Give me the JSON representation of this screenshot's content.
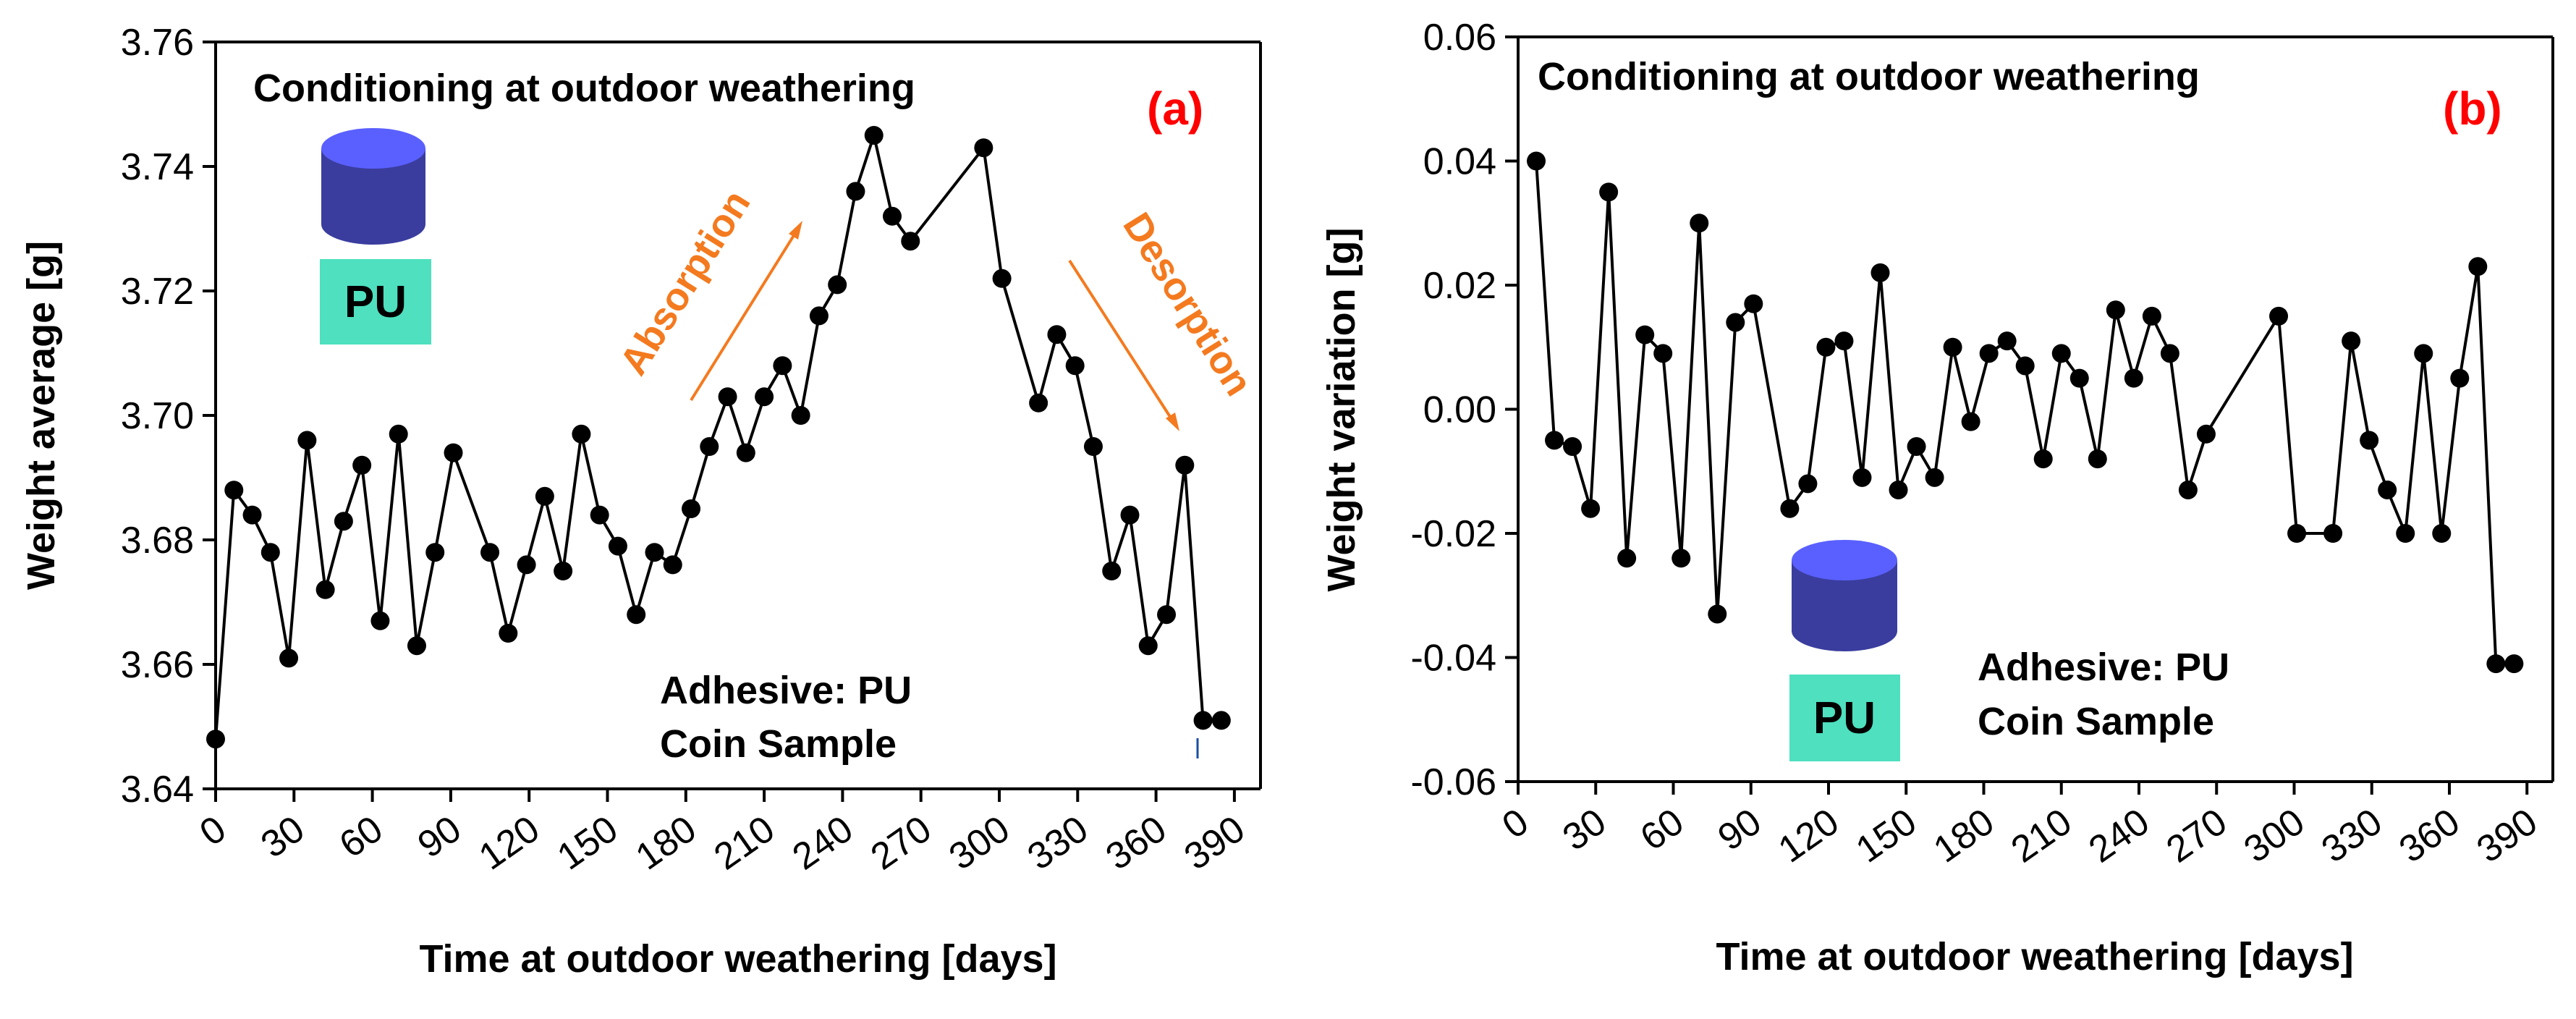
{
  "chart_data": [
    {
      "type": "line",
      "panel_label": "(a)",
      "title": "Conditioning at outdoor weathering",
      "xlabel": "Time at outdoor weathering [days]",
      "ylabel": "Weight average [g]",
      "xlim": [
        0,
        400
      ],
      "ylim": [
        3.64,
        3.76
      ],
      "xticks": [
        "0",
        "30",
        "60",
        "90",
        "120",
        "150",
        "180",
        "210",
        "240",
        "270",
        "300",
        "330",
        "360",
        "390"
      ],
      "yticks": [
        "3.64",
        "3.66",
        "3.68",
        "3.70",
        "3.72",
        "3.74",
        "3.76"
      ],
      "series": [
        {
          "name": "Weight average",
          "x": [
            0,
            7,
            14,
            21,
            28,
            35,
            42,
            49,
            56,
            63,
            70,
            77,
            84,
            91,
            105,
            112,
            119,
            126,
            133,
            140,
            147,
            154,
            161,
            168,
            175,
            182,
            189,
            196,
            203,
            210,
            217,
            224,
            231,
            238,
            245,
            252,
            259,
            266,
            294,
            301,
            315,
            322,
            329,
            336,
            343,
            350,
            357,
            364,
            371,
            378,
            385
          ],
          "values": [
            3.648,
            3.688,
            3.684,
            3.678,
            3.661,
            3.696,
            3.672,
            3.683,
            3.692,
            3.667,
            3.697,
            3.663,
            3.678,
            3.694,
            3.678,
            3.665,
            3.676,
            3.687,
            3.675,
            3.697,
            3.684,
            3.679,
            3.668,
            3.678,
            3.676,
            3.685,
            3.695,
            3.703,
            3.694,
            3.703,
            3.708,
            3.7,
            3.716,
            3.721,
            3.736,
            3.745,
            3.732,
            3.728,
            3.743,
            3.722,
            3.702,
            3.713,
            3.708,
            3.695,
            3.675,
            3.684,
            3.663,
            3.668,
            3.692,
            3.651,
            3.651
          ]
        }
      ],
      "annotations": {
        "absorption": "Absorption",
        "desorption": "Desorption",
        "adhesive_line": "Adhesive: PU",
        "sample_line": "Coin Sample",
        "pu_label": "PU"
      }
    },
    {
      "type": "line",
      "panel_label": "(b)",
      "title": "Conditioning at outdoor weathering",
      "xlabel": "Time at outdoor weathering [days]",
      "ylabel": "Weight variation [g]",
      "xlim": [
        0,
        400
      ],
      "ylim": [
        -0.06,
        0.06
      ],
      "xticks": [
        "0",
        "30",
        "60",
        "90",
        "120",
        "150",
        "180",
        "210",
        "240",
        "270",
        "300",
        "330",
        "360",
        "390"
      ],
      "yticks": [
        "-0.06",
        "-0.04",
        "-0.02",
        "0.00",
        "0.02",
        "0.04",
        "0.06"
      ],
      "series": [
        {
          "name": "Weight variation",
          "x": [
            7,
            14,
            21,
            28,
            35,
            42,
            49,
            56,
            63,
            70,
            77,
            84,
            91,
            105,
            112,
            119,
            126,
            133,
            140,
            147,
            154,
            161,
            168,
            175,
            182,
            189,
            196,
            203,
            210,
            217,
            224,
            231,
            238,
            245,
            252,
            259,
            266,
            294,
            301,
            315,
            322,
            329,
            336,
            343,
            350,
            357,
            364,
            371,
            378,
            385
          ],
          "values": [
            0.04,
            -0.005,
            -0.006,
            -0.016,
            0.035,
            -0.024,
            0.012,
            0.009,
            -0.024,
            0.03,
            -0.033,
            0.014,
            0.017,
            -0.016,
            -0.012,
            0.01,
            0.011,
            -0.011,
            0.022,
            -0.013,
            -0.006,
            -0.011,
            0.01,
            -0.002,
            0.009,
            0.011,
            0.007,
            -0.008,
            0.009,
            0.005,
            -0.008,
            0.016,
            0.005,
            0.015,
            0.009,
            -0.013,
            -0.004,
            0.015,
            -0.02,
            -0.02,
            0.011,
            -0.005,
            -0.013,
            -0.02,
            0.009,
            -0.02,
            0.005,
            0.023,
            -0.041,
            -0.041
          ]
        }
      ],
      "annotations": {
        "adhesive_line": "Adhesive: PU",
        "sample_line": "Coin Sample",
        "pu_label": "PU"
      }
    }
  ],
  "colors": {
    "line": "#000000",
    "panel_label": "#ff0000",
    "arrow": "#f47a1f",
    "cylinder_top": "#5a60ff",
    "cylinder_body": "#3a3d9e",
    "pu_box": "#4ee0bf"
  }
}
